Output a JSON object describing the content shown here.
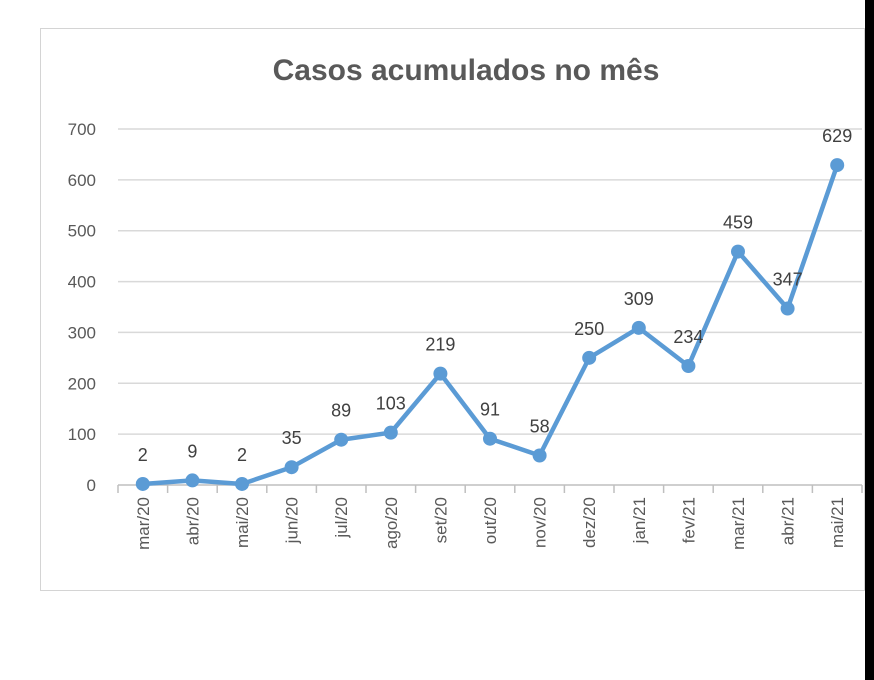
{
  "chart_data": {
    "type": "line",
    "title": "Casos acumulados no mês",
    "xlabel": "",
    "ylabel": "",
    "categories": [
      "mar/20",
      "abr/20",
      "mai/20",
      "jun/20",
      "jul/20",
      "ago/20",
      "set/20",
      "out/20",
      "nov/20",
      "dez/20",
      "jan/21",
      "fev/21",
      "mar/21",
      "abr/21",
      "mai/21"
    ],
    "series": [
      {
        "values": [
          2,
          9,
          2,
          35,
          89,
          103,
          219,
          91,
          58,
          250,
          309,
          234,
          459,
          347,
          629
        ],
        "color": "#5B9BD5"
      }
    ],
    "ylim": [
      0,
      700
    ],
    "yticks": [
      0,
      100,
      200,
      300,
      400,
      500,
      600,
      700
    ],
    "grid": true,
    "legend": "none",
    "data_labels": true
  }
}
